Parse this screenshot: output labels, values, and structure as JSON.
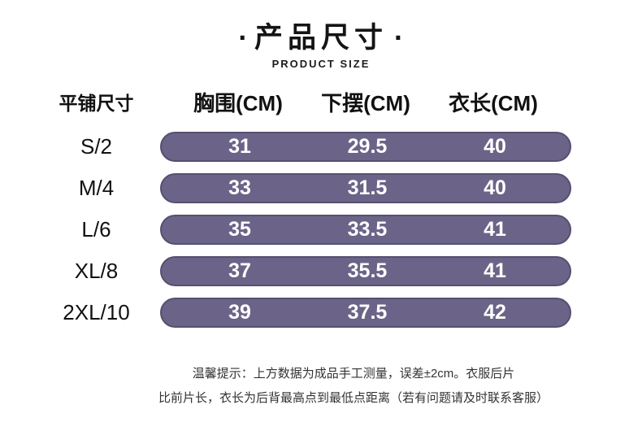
{
  "page": {
    "background": "#ffffff",
    "bar_fill_color": "#6b6488",
    "bar_border_color": "#55506f",
    "value_text_color": "#ffffff"
  },
  "header": {
    "dot": "·",
    "title": "产品尺寸",
    "subtitle": "PRODUCT SIZE"
  },
  "table": {
    "label_header": "平铺尺寸",
    "column_headers": [
      "胸围(CM)",
      "下摆(CM)",
      "衣长(CM)"
    ],
    "rows": [
      {
        "size": "S/2",
        "values": [
          "31",
          "29.5",
          "40"
        ]
      },
      {
        "size": "M/4",
        "values": [
          "33",
          "31.5",
          "40"
        ]
      },
      {
        "size": "L/6",
        "values": [
          "35",
          "33.5",
          "41"
        ]
      },
      {
        "size": "XL/8",
        "values": [
          "37",
          "35.5",
          "41"
        ]
      },
      {
        "size": "2XL/10",
        "values": [
          "39",
          "37.5",
          "42"
        ]
      }
    ]
  },
  "footer": {
    "line1": "温馨提示：上方数据为成品手工测量，误差±2cm。衣服后片",
    "line2": "比前片长，衣长为后背最高点到最低点距离（若有问题请及时联系客服）"
  },
  "chart_data": {
    "type": "table",
    "title": "产品尺寸 (PRODUCT SIZE)",
    "columns": [
      "平铺尺寸",
      "胸围(CM)",
      "下摆(CM)",
      "衣长(CM)"
    ],
    "rows": [
      [
        "S/2",
        31,
        29.5,
        40
      ],
      [
        "M/4",
        33,
        31.5,
        40
      ],
      [
        "L/6",
        35,
        33.5,
        41
      ],
      [
        "XL/8",
        37,
        35.5,
        41
      ],
      [
        "2XL/10",
        39,
        37.5,
        42
      ]
    ],
    "unit": "CM",
    "note": "温馨提示：上方数据为成品手工测量，误差±2cm。衣服后片比前片长，衣长为后背最高点到最低点距离（若有问题请及时联系客服）"
  }
}
